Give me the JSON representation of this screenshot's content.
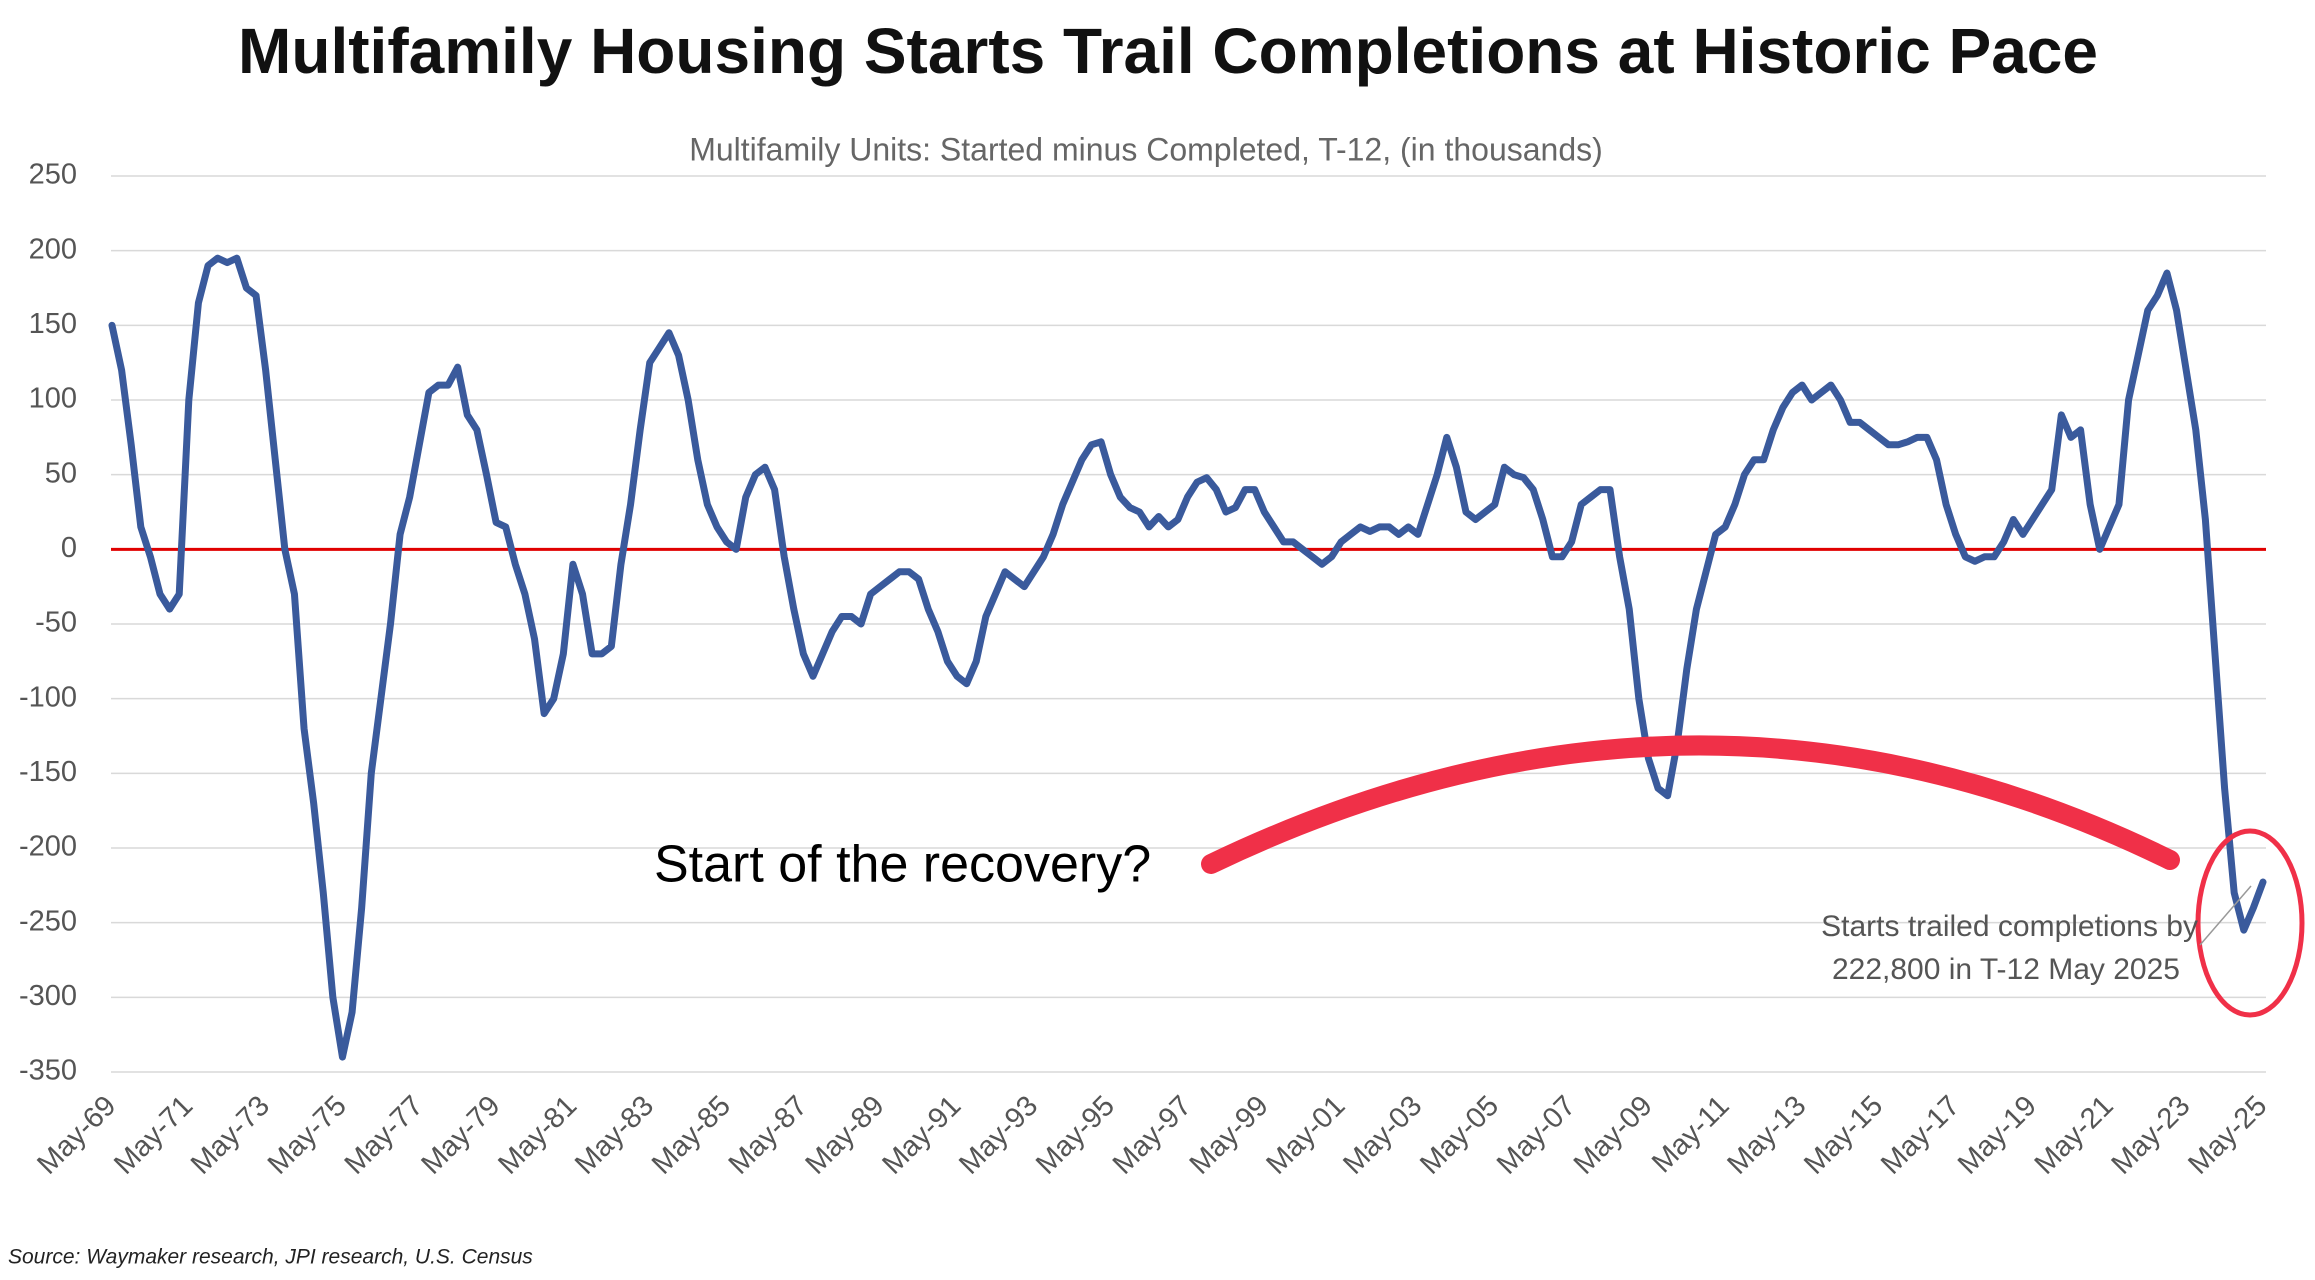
{
  "chart_data": {
    "type": "line",
    "title": "Multifamily Housing Starts Trail Completions at Historic Pace",
    "subtitle": "Multifamily Units: Started minus Completed, T-12, (in thousands)",
    "source": "Source: Waymaker research, JPI research, U.S. Census",
    "annotation": "Start of the recovery?",
    "callout": [
      "Starts trailed completions by",
      "222,800 in T-12 May 2025"
    ],
    "reference_line": {
      "value": 0,
      "color": "#e00000"
    },
    "ylim": [
      -350,
      250
    ],
    "yticks": [
      -350,
      -300,
      -250,
      -200,
      -150,
      -100,
      -50,
      0,
      50,
      100,
      150,
      200,
      250
    ],
    "grid": true,
    "categories": [
      "May-69",
      null,
      null,
      null,
      null,
      null,
      null,
      null,
      "May-71",
      null,
      null,
      null,
      null,
      null,
      null,
      null,
      "May-73",
      null,
      null,
      null,
      null,
      null,
      null,
      null,
      "May-75",
      null,
      null,
      null,
      null,
      null,
      null,
      null,
      "May-77",
      null,
      null,
      null,
      null,
      null,
      null,
      null,
      "May-79",
      null,
      null,
      null,
      null,
      null,
      null,
      null,
      "May-81",
      null,
      null,
      null,
      null,
      null,
      null,
      null,
      "May-83",
      null,
      null,
      null,
      null,
      null,
      null,
      null,
      "May-85",
      null,
      null,
      null,
      null,
      null,
      null,
      null,
      "May-87",
      null,
      null,
      null,
      null,
      null,
      null,
      null,
      "May-89",
      null,
      null,
      null,
      null,
      null,
      null,
      null,
      "May-91",
      null,
      null,
      null,
      null,
      null,
      null,
      null,
      "May-93",
      null,
      null,
      null,
      null,
      null,
      null,
      null,
      "May-95",
      null,
      null,
      null,
      null,
      null,
      null,
      null,
      "May-97",
      null,
      null,
      null,
      null,
      null,
      null,
      null,
      "May-99",
      null,
      null,
      null,
      null,
      null,
      null,
      null,
      "May-01",
      null,
      null,
      null,
      null,
      null,
      null,
      null,
      "May-03",
      null,
      null,
      null,
      null,
      null,
      null,
      null,
      "May-05",
      null,
      null,
      null,
      null,
      null,
      null,
      null,
      "May-07",
      null,
      null,
      null,
      null,
      null,
      null,
      null,
      "May-09",
      null,
      null,
      null,
      null,
      null,
      null,
      null,
      "May-11",
      null,
      null,
      null,
      null,
      null,
      null,
      null,
      "May-13",
      null,
      null,
      null,
      null,
      null,
      null,
      null,
      "May-15",
      null,
      null,
      null,
      null,
      null,
      null,
      null,
      "May-17",
      null,
      null,
      null,
      null,
      null,
      null,
      null,
      "May-19",
      null,
      null,
      null,
      null,
      null,
      null,
      null,
      "May-21",
      null,
      null,
      null,
      null,
      null,
      null,
      null,
      "May-23",
      null,
      null,
      null,
      null,
      null,
      null,
      null,
      "May-25"
    ],
    "series": [
      {
        "color": "#3a5a9c",
        "values": [
          150,
          120,
          70,
          15,
          -5,
          -30,
          -40,
          -30,
          100,
          165,
          190,
          195,
          192,
          195,
          175,
          170,
          120,
          60,
          0,
          -30,
          -120,
          -170,
          -230,
          -300,
          -340,
          -310,
          -240,
          -150,
          -100,
          -50,
          10,
          35,
          70,
          105,
          110,
          110,
          122,
          90,
          80,
          50,
          18,
          15,
          -10,
          -30,
          -60,
          -110,
          -100,
          -70,
          -10,
          -30,
          -70,
          -70,
          -65,
          -10,
          30,
          80,
          125,
          135,
          145,
          130,
          100,
          60,
          30,
          15,
          5,
          0,
          35,
          50,
          55,
          40,
          -5,
          -40,
          -70,
          -85,
          -70,
          -55,
          -45,
          -45,
          -50,
          -30,
          -25,
          -20,
          -15,
          -15,
          -20,
          -40,
          -55,
          -75,
          -85,
          -90,
          -75,
          -45,
          -30,
          -15,
          -20,
          -25,
          -15,
          -5,
          10,
          30,
          45,
          60,
          70,
          72,
          50,
          35,
          28,
          25,
          15,
          22,
          15,
          20,
          35,
          45,
          48,
          40,
          25,
          28,
          40,
          40,
          25,
          15,
          5,
          5,
          0,
          -5,
          -10,
          -5,
          5,
          10,
          15,
          12,
          15,
          15,
          10,
          15,
          10,
          30,
          50,
          75,
          55,
          25,
          20,
          25,
          30,
          55,
          50,
          48,
          40,
          20,
          -5,
          -5,
          5,
          30,
          35,
          40,
          40,
          -5,
          -40,
          -100,
          -140,
          -160,
          -165,
          -130,
          -80,
          -40,
          -15,
          10,
          15,
          30,
          50,
          60,
          60,
          80,
          95,
          105,
          110,
          100,
          105,
          110,
          100,
          85,
          85,
          80,
          75,
          70,
          70,
          72,
          75,
          75,
          60,
          30,
          10,
          -5,
          -8,
          -5,
          -5,
          5,
          20,
          10,
          20,
          30,
          40,
          90,
          75,
          80,
          30,
          0,
          15,
          30,
          100,
          130,
          160,
          170,
          185,
          160,
          120,
          80,
          20,
          -70,
          -160,
          -230,
          -255,
          -240,
          -222.8
        ]
      }
    ]
  }
}
